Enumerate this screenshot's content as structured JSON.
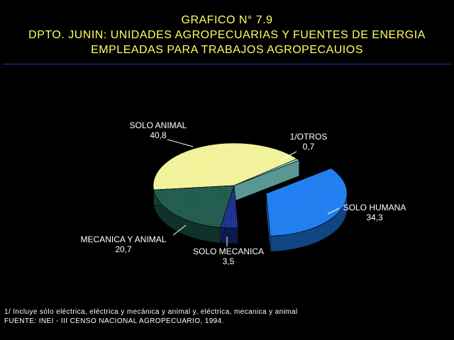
{
  "header": {
    "title_line1": "GRAFICO N° 7.9",
    "title_line2": "DPTO. JUNIN: UNIDADES AGROPECUARIAS Y FUENTES DE ENERGIA",
    "title_line3": "EMPLEADAS PARA TRABAJOS AGROPECAUIOS"
  },
  "chart_data": {
    "type": "pie",
    "title": "GRAFICO N° 7.9 DPTO. JUNIN: UNIDADES AGROPECUARIAS Y FUENTES DE ENERGIA EMPLEADAS PARA TRABAJOS AGROPECAUIOS",
    "slices": [
      {
        "label": "1/OTROS",
        "value": 0.7,
        "value_text": "0,7",
        "color": "#7fd8d0"
      },
      {
        "label": "SOLO HUMANA",
        "value": 34.3,
        "value_text": "34,3",
        "color": "#1e7df0",
        "exploded": true
      },
      {
        "label": "SOLO MECANICA",
        "value": 3.5,
        "value_text": "3,5",
        "color": "#1a2f8e"
      },
      {
        "label": "MECANICA Y ANIMAL",
        "value": 20.7,
        "value_text": "20,7",
        "color": "#1f5a4c"
      },
      {
        "label": "SOLO ANIMAL",
        "value": 40.8,
        "value_text": "40,8",
        "color": "#f2f29a"
      }
    ]
  },
  "footer": {
    "note": "1/ Incluye sólo eléctrica, eléctrica y mecánica y animal y, eléctrica, mecanica y animal",
    "source": "FUENTE: INEI - III CENSO NACIONAL AGROPECUARIO, 1994."
  }
}
